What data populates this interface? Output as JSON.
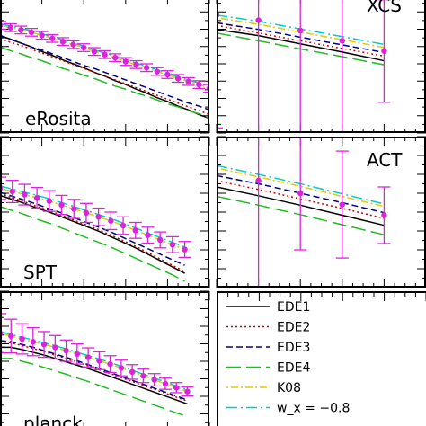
{
  "colors": {
    "EDE1": "#000000",
    "EDE2": "#cc0000",
    "EDE3": "#000080",
    "EDE4": "#22bb22",
    "K08": "#e6c800",
    "wx": "#00cccc",
    "data": "#dd22dd"
  },
  "legend": {
    "items": [
      {
        "key": "EDE1",
        "label": "EDE1",
        "dash": ""
      },
      {
        "key": "EDE2",
        "label": "EDE2",
        "dash": "2,3"
      },
      {
        "key": "EDE3",
        "label": "EDE3",
        "dash": "7,4"
      },
      {
        "key": "EDE4",
        "label": "EDE4",
        "dash": "16,6"
      },
      {
        "key": "K08",
        "label": "K08",
        "dash": "2,3,8,3"
      },
      {
        "key": "wx",
        "label": "w_x = −0.8",
        "dash": "12,4,2,4"
      }
    ]
  },
  "chart_data": [
    {
      "type": "line",
      "panel": "eRosita",
      "title": "eRosita",
      "x": [
        0.0,
        0.1,
        0.2,
        0.3,
        0.4,
        0.5,
        0.6,
        0.7,
        0.8,
        0.9,
        1.0,
        1.1,
        1.2,
        1.3,
        1.4,
        1.5,
        1.6,
        1.7,
        1.8,
        1.9,
        2.0
      ],
      "points": [
        2.0,
        1.97,
        1.94,
        1.91,
        1.87,
        1.83,
        1.79,
        1.75,
        1.71,
        1.66,
        1.62,
        1.58,
        1.53,
        1.49,
        1.45,
        1.4,
        1.36,
        1.31,
        1.27,
        1.23,
        1.18
      ],
      "err": [
        0.05,
        0.05,
        0.05,
        0.05,
        0.05,
        0.05,
        0.05,
        0.05,
        0.05,
        0.05,
        0.05,
        0.05,
        0.05,
        0.05,
        0.05,
        0.05,
        0.05,
        0.05,
        0.05,
        0.05,
        0.05
      ],
      "series": [
        {
          "name": "EDE1",
          "values": [
            1.87,
            1.82,
            1.77,
            1.72,
            1.66,
            1.61,
            1.55,
            1.5,
            1.45,
            1.39,
            1.34,
            1.28,
            1.23,
            1.17,
            1.12,
            1.06,
            1.01,
            0.95,
            0.9,
            0.84,
            0.79
          ]
        },
        {
          "name": "EDE2",
          "values": [
            1.83,
            1.78,
            1.74,
            1.69,
            1.64,
            1.59,
            1.54,
            1.49,
            1.44,
            1.39,
            1.34,
            1.29,
            1.24,
            1.19,
            1.14,
            1.09,
            1.04,
            0.99,
            0.94,
            0.89,
            0.84
          ]
        },
        {
          "name": "EDE3",
          "values": [
            1.86,
            1.82,
            1.77,
            1.72,
            1.68,
            1.63,
            1.58,
            1.53,
            1.48,
            1.44,
            1.39,
            1.34,
            1.29,
            1.24,
            1.19,
            1.14,
            1.09,
            1.04,
            0.99,
            0.95,
            0.9
          ]
        },
        {
          "name": "EDE4",
          "values": [
            1.72,
            1.67,
            1.63,
            1.58,
            1.54,
            1.49,
            1.44,
            1.4,
            1.35,
            1.31,
            1.26,
            1.21,
            1.17,
            1.12,
            1.08,
            1.03,
            0.98,
            0.94,
            0.89,
            0.85,
            0.8
          ]
        },
        {
          "name": "K08",
          "values": [
            2.0,
            1.97,
            1.94,
            1.91,
            1.87,
            1.83,
            1.79,
            1.75,
            1.71,
            1.66,
            1.62,
            1.58,
            1.53,
            1.49,
            1.45,
            1.4,
            1.36,
            1.31,
            1.27,
            1.23,
            1.18
          ]
        },
        {
          "name": "wx",
          "values": [
            2.02,
            1.99,
            1.96,
            1.93,
            1.89,
            1.85,
            1.81,
            1.77,
            1.73,
            1.68,
            1.64,
            1.6,
            1.55,
            1.51,
            1.47,
            1.42,
            1.38,
            1.33,
            1.29,
            1.25,
            1.2
          ]
        }
      ]
    },
    {
      "type": "line",
      "panel": "XCS",
      "title": "XCS",
      "x": [
        0.0,
        0.3,
        0.6,
        0.9,
        1.2
      ],
      "points": [
        2.9,
        2.8,
        2.6,
        2.4,
        2.2
      ],
      "err": [
        2.2,
        2.2,
        2.2,
        2.0,
        1.0
      ],
      "series": [
        {
          "name": "EDE1",
          "values": [
            2.62,
            2.5,
            2.34,
            2.18,
            2.01
          ]
        },
        {
          "name": "EDE2",
          "values": [
            2.7,
            2.55,
            2.4,
            2.25,
            2.1
          ]
        },
        {
          "name": "EDE3",
          "values": [
            2.75,
            2.62,
            2.47,
            2.32,
            2.17
          ]
        },
        {
          "name": "EDE4",
          "values": [
            2.55,
            2.4,
            2.24,
            2.09,
            1.93
          ]
        },
        {
          "name": "K08",
          "values": [
            2.85,
            2.72,
            2.57,
            2.42,
            2.27
          ]
        },
        {
          "name": "wx",
          "values": [
            2.9,
            2.78,
            2.63,
            2.48,
            2.33
          ]
        }
      ]
    },
    {
      "type": "line",
      "panel": "SPT",
      "title": "SPT",
      "x": [
        0.0,
        0.1,
        0.2,
        0.3,
        0.4,
        0.5,
        0.6,
        0.7,
        0.8,
        0.9,
        1.0,
        1.1,
        1.2,
        1.3,
        1.4,
        1.5
      ],
      "points": [
        1.95,
        1.91,
        1.87,
        1.83,
        1.79,
        1.74,
        1.69,
        1.64,
        1.59,
        1.54,
        1.48,
        1.42,
        1.36,
        1.3,
        1.24,
        1.18
      ],
      "err": [
        0.14,
        0.14,
        0.13,
        0.13,
        0.13,
        0.12,
        0.12,
        0.12,
        0.11,
        0.11,
        0.11,
        0.1,
        0.1,
        0.1,
        0.1,
        0.1
      ],
      "series": [
        {
          "name": "EDE1",
          "values": [
            1.86,
            1.81,
            1.76,
            1.7,
            1.65,
            1.59,
            1.53,
            1.47,
            1.41,
            1.34,
            1.27,
            1.2,
            1.12,
            1.04,
            0.96,
            0.88
          ]
        },
        {
          "name": "EDE2",
          "values": [
            1.88,
            1.83,
            1.78,
            1.72,
            1.67,
            1.61,
            1.55,
            1.49,
            1.43,
            1.36,
            1.29,
            1.22,
            1.14,
            1.06,
            0.98,
            0.9
          ]
        },
        {
          "name": "EDE3",
          "values": [
            1.9,
            1.85,
            1.8,
            1.75,
            1.69,
            1.64,
            1.58,
            1.52,
            1.46,
            1.4,
            1.33,
            1.26,
            1.19,
            1.12,
            1.05,
            0.98
          ]
        },
        {
          "name": "EDE4",
          "values": [
            1.72,
            1.67,
            1.62,
            1.56,
            1.51,
            1.45,
            1.39,
            1.33,
            1.27,
            1.21,
            1.14,
            1.07,
            1.0,
            0.93,
            0.86,
            0.78
          ]
        },
        {
          "name": "K08",
          "values": [
            1.95,
            1.91,
            1.87,
            1.83,
            1.79,
            1.74,
            1.69,
            1.64,
            1.59,
            1.54,
            1.48,
            1.42,
            1.36,
            1.3,
            1.24,
            1.18
          ]
        },
        {
          "name": "wx",
          "values": [
            1.98,
            1.94,
            1.9,
            1.86,
            1.82,
            1.77,
            1.72,
            1.67,
            1.62,
            1.57,
            1.51,
            1.45,
            1.39,
            1.33,
            1.27,
            1.21
          ]
        }
      ]
    },
    {
      "type": "line",
      "panel": "ACT",
      "title": "ACT",
      "x": [
        0.0,
        0.3,
        0.6,
        0.9,
        1.2
      ],
      "points": [
        2.4,
        2.3,
        2.1,
        1.92,
        1.75
      ],
      "err": [
        2.0,
        2.2,
        0.9,
        0.85,
        0.45
      ],
      "series": [
        {
          "name": "EDE1",
          "values": [
            2.2,
            2.06,
            1.91,
            1.75,
            1.59
          ]
        },
        {
          "name": "EDE2",
          "values": [
            2.3,
            2.16,
            2.01,
            1.86,
            1.7
          ]
        },
        {
          "name": "EDE3",
          "values": [
            2.38,
            2.25,
            2.1,
            1.95,
            1.79
          ]
        },
        {
          "name": "EDE4",
          "values": [
            2.05,
            1.91,
            1.76,
            1.6,
            1.44
          ]
        },
        {
          "name": "K08",
          "values": [
            2.5,
            2.36,
            2.21,
            2.05,
            1.89
          ]
        },
        {
          "name": "wx",
          "values": [
            2.54,
            2.4,
            2.25,
            2.09,
            1.93
          ]
        }
      ]
    },
    {
      "type": "line",
      "panel": "planck",
      "title": "planck",
      "x": [
        0.0,
        0.1,
        0.2,
        0.3,
        0.4,
        0.5,
        0.6,
        0.7,
        0.8,
        0.9,
        1.0,
        1.1,
        1.2,
        1.3,
        1.4,
        1.5,
        1.6,
        1.7
      ],
      "points": [
        2.25,
        2.2,
        2.15,
        2.1,
        2.05,
        2.0,
        1.94,
        1.88,
        1.82,
        1.76,
        1.7,
        1.63,
        1.56,
        1.49,
        1.42,
        1.35,
        1.28,
        1.21
      ],
      "err": [
        0.35,
        0.3,
        0.27,
        0.25,
        0.23,
        0.21,
        0.19,
        0.18,
        0.17,
        0.16,
        0.15,
        0.14,
        0.13,
        0.12,
        0.11,
        0.1,
        0.09,
        0.08
      ],
      "series": [
        {
          "name": "EDE1",
          "values": [
            2.0,
            2.0,
            1.96,
            1.91,
            1.86,
            1.8,
            1.74,
            1.68,
            1.62,
            1.55,
            1.48,
            1.41,
            1.34,
            1.27,
            1.2,
            1.13,
            1.06,
            0.99
          ]
        },
        {
          "name": "EDE2",
          "values": [
            2.1,
            2.08,
            2.03,
            1.98,
            1.92,
            1.86,
            1.8,
            1.74,
            1.67,
            1.6,
            1.53,
            1.46,
            1.39,
            1.32,
            1.25,
            1.18,
            1.11,
            1.04
          ]
        },
        {
          "name": "EDE3",
          "values": [
            2.12,
            2.1,
            2.05,
            2.0,
            1.94,
            1.88,
            1.82,
            1.76,
            1.69,
            1.62,
            1.55,
            1.48,
            1.41,
            1.34,
            1.27,
            1.2,
            1.13,
            1.06
          ]
        },
        {
          "name": "EDE4",
          "values": [
            1.8,
            1.8,
            1.75,
            1.7,
            1.64,
            1.58,
            1.52,
            1.45,
            1.39,
            1.32,
            1.25,
            1.18,
            1.11,
            1.04,
            0.97,
            0.9,
            0.83,
            0.76
          ]
        },
        {
          "name": "K08",
          "values": [
            2.25,
            2.2,
            2.15,
            2.1,
            2.05,
            2.0,
            1.94,
            1.88,
            1.82,
            1.76,
            1.7,
            1.63,
            1.56,
            1.49,
            1.42,
            1.35,
            1.28,
            1.21
          ]
        },
        {
          "name": "wx",
          "values": [
            2.28,
            2.23,
            2.18,
            2.13,
            2.08,
            2.03,
            1.97,
            1.91,
            1.85,
            1.79,
            1.73,
            1.66,
            1.59,
            1.52,
            1.45,
            1.38,
            1.31,
            1.24
          ]
        }
      ]
    }
  ]
}
